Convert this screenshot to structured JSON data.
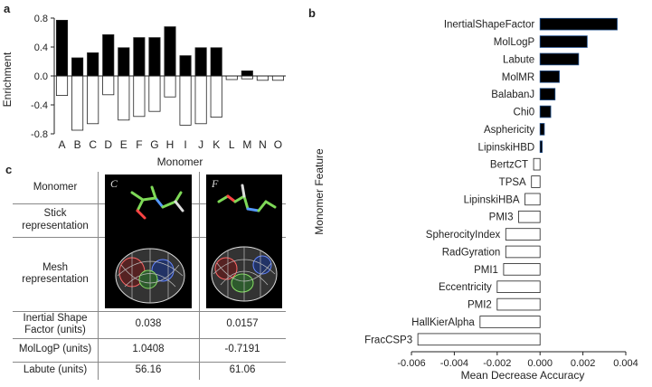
{
  "panel_a": {
    "letter": "a",
    "chart_data": {
      "type": "bar",
      "categories": [
        "A",
        "B",
        "C",
        "D",
        "E",
        "F",
        "G",
        "H",
        "I",
        "J",
        "K",
        "L",
        "M",
        "N",
        "O"
      ],
      "series": [
        {
          "values": [
            0.77,
            0.25,
            0.32,
            0.57,
            0.39,
            0.53,
            0.53,
            0.68,
            0.28,
            0.39,
            0.39,
            0.0,
            0.07,
            0.0,
            0.0
          ]
        },
        {
          "values": [
            -0.27,
            -0.75,
            -0.66,
            -0.26,
            -0.61,
            -0.56,
            -0.49,
            -0.29,
            -0.68,
            -0.66,
            -0.57,
            -0.05,
            -0.04,
            -0.06,
            -0.06
          ]
        }
      ],
      "xlabel": "Monomer",
      "ylabel": "Enrichment",
      "ylim": [
        -0.8,
        0.8
      ],
      "yticks": [
        "0.8",
        "0.4",
        "0.0",
        "-0.4",
        "-0.8"
      ],
      "colors": {
        "positive": "#000000",
        "negative": "#ffffff"
      }
    }
  },
  "panel_b": {
    "letter": "b",
    "chart_data": {
      "type": "bar",
      "orientation": "horizontal",
      "categories": [
        "InertialShapeFactor",
        "MolLogP",
        "Labute",
        "MolMR",
        "BalabanJ",
        "Chi0",
        "Asphericity",
        "LipinskiHBD",
        "BertzCT",
        "TPSA",
        "LipinskiHBA",
        "PMI3",
        "SpherocityIndex",
        "RadGyration",
        "PMI1",
        "Eccentricity",
        "PMI2",
        "HallKierAlpha",
        "FracCSP3"
      ],
      "values": [
        0.0036,
        0.0022,
        0.0018,
        0.0009,
        0.0007,
        0.0005,
        0.0002,
        0.0001,
        -0.0003,
        -0.0004,
        -0.0007,
        -0.001,
        -0.0016,
        -0.0016,
        -0.0017,
        -0.002,
        -0.002,
        -0.0028,
        -0.0057
      ],
      "xlabel": "Mean Decrease Accuracy",
      "ylabel": "Monomer Feature",
      "xlim": [
        -0.006,
        0.004
      ],
      "xticks": [
        "-0.006",
        "-0.004",
        "-0.002",
        "0.000",
        "0.002",
        "0.004"
      ],
      "colors": {
        "positive": "#000000",
        "negative": "#ffffff"
      }
    }
  },
  "panel_c": {
    "letter": "c",
    "rows": {
      "monomer": "Monomer",
      "stick": "Stick representation",
      "mesh": "Mesh representation",
      "isf": "Inertial Shape Factor (units)",
      "logp": "MolLogP (units)",
      "labute": "Labute (units)"
    },
    "col_c": {
      "label": "C",
      "isf": "0.038",
      "logp": "1.0408",
      "labute": "56.16"
    },
    "col_f": {
      "label": "F",
      "isf": "0.0157",
      "logp": "-0.7191",
      "labute": "61.06"
    }
  }
}
